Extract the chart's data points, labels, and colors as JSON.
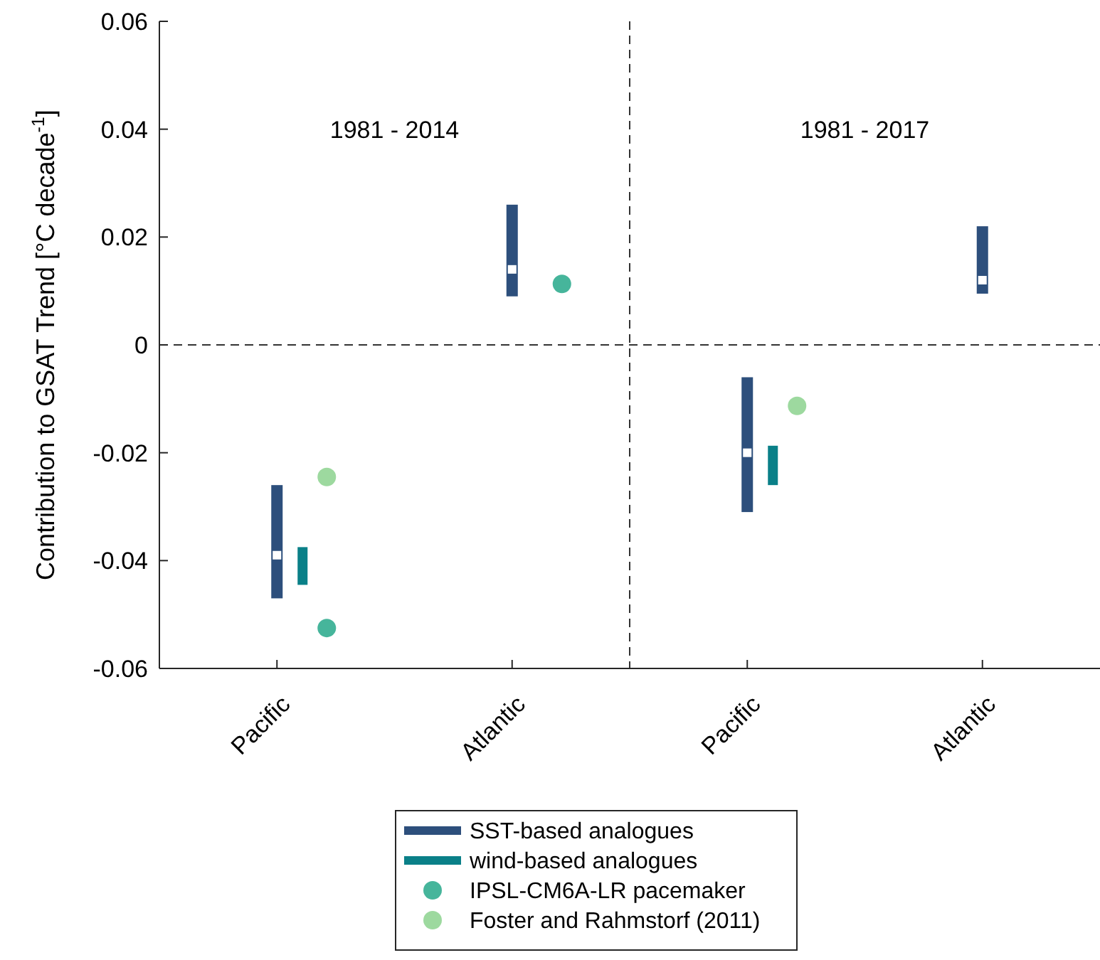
{
  "chart_data": {
    "type": "bar",
    "categories": [
      "Pacific",
      "Atlantic",
      "Pacific",
      "Atlantic"
    ],
    "ylabel": "Contribution to GSAT Trend [°C decade$^{-1}$]",
    "ylim": [
      -0.06,
      0.06
    ],
    "yticks": [
      -0.06,
      -0.04,
      -0.02,
      0,
      0.02,
      0.04,
      0.06
    ],
    "annotations": [
      "1981 - 2014",
      "1981 - 2017"
    ],
    "ref_lines": [
      {
        "axis": "y",
        "value": 0,
        "line_style": "dashed"
      }
    ],
    "legend": "bottom",
    "marker": "circle",
    "series": [
      {
        "name": "SST-based analogues",
        "type": "box",
        "color": "#2d4f7c",
        "boxes": [
          {
            "low": -0.047,
            "q1": -0.047,
            "median": -0.039,
            "q3": -0.026,
            "high": -0.026
          },
          {
            "low": 0.009,
            "q1": 0.009,
            "median": 0.014,
            "q3": 0.026,
            "high": 0.026
          },
          {
            "low": -0.031,
            "q1": -0.031,
            "median": -0.02,
            "q3": -0.006,
            "high": -0.006
          },
          {
            "low": 0.0095,
            "q1": 0.0095,
            "median": 0.012,
            "q3": 0.022,
            "high": 0.022
          }
        ]
      },
      {
        "name": "wind-based analogues",
        "color": "#0a8088",
        "base": [
          -0.0445,
          null,
          -0.026,
          null
        ],
        "values": [
          0.007,
          null,
          0.0073,
          null
        ]
      },
      {
        "name": "IPSL-CM6A-LR pacemaker",
        "type": "scatter",
        "color": "#46b59b",
        "values": [
          -0.0525,
          0.0113,
          null,
          null
        ]
      },
      {
        "name": "Foster and Rahmstorf (2011)",
        "type": "scatter",
        "color": "#9dd99f",
        "values": [
          -0.0245,
          null,
          -0.0113,
          null
        ]
      }
    ]
  }
}
